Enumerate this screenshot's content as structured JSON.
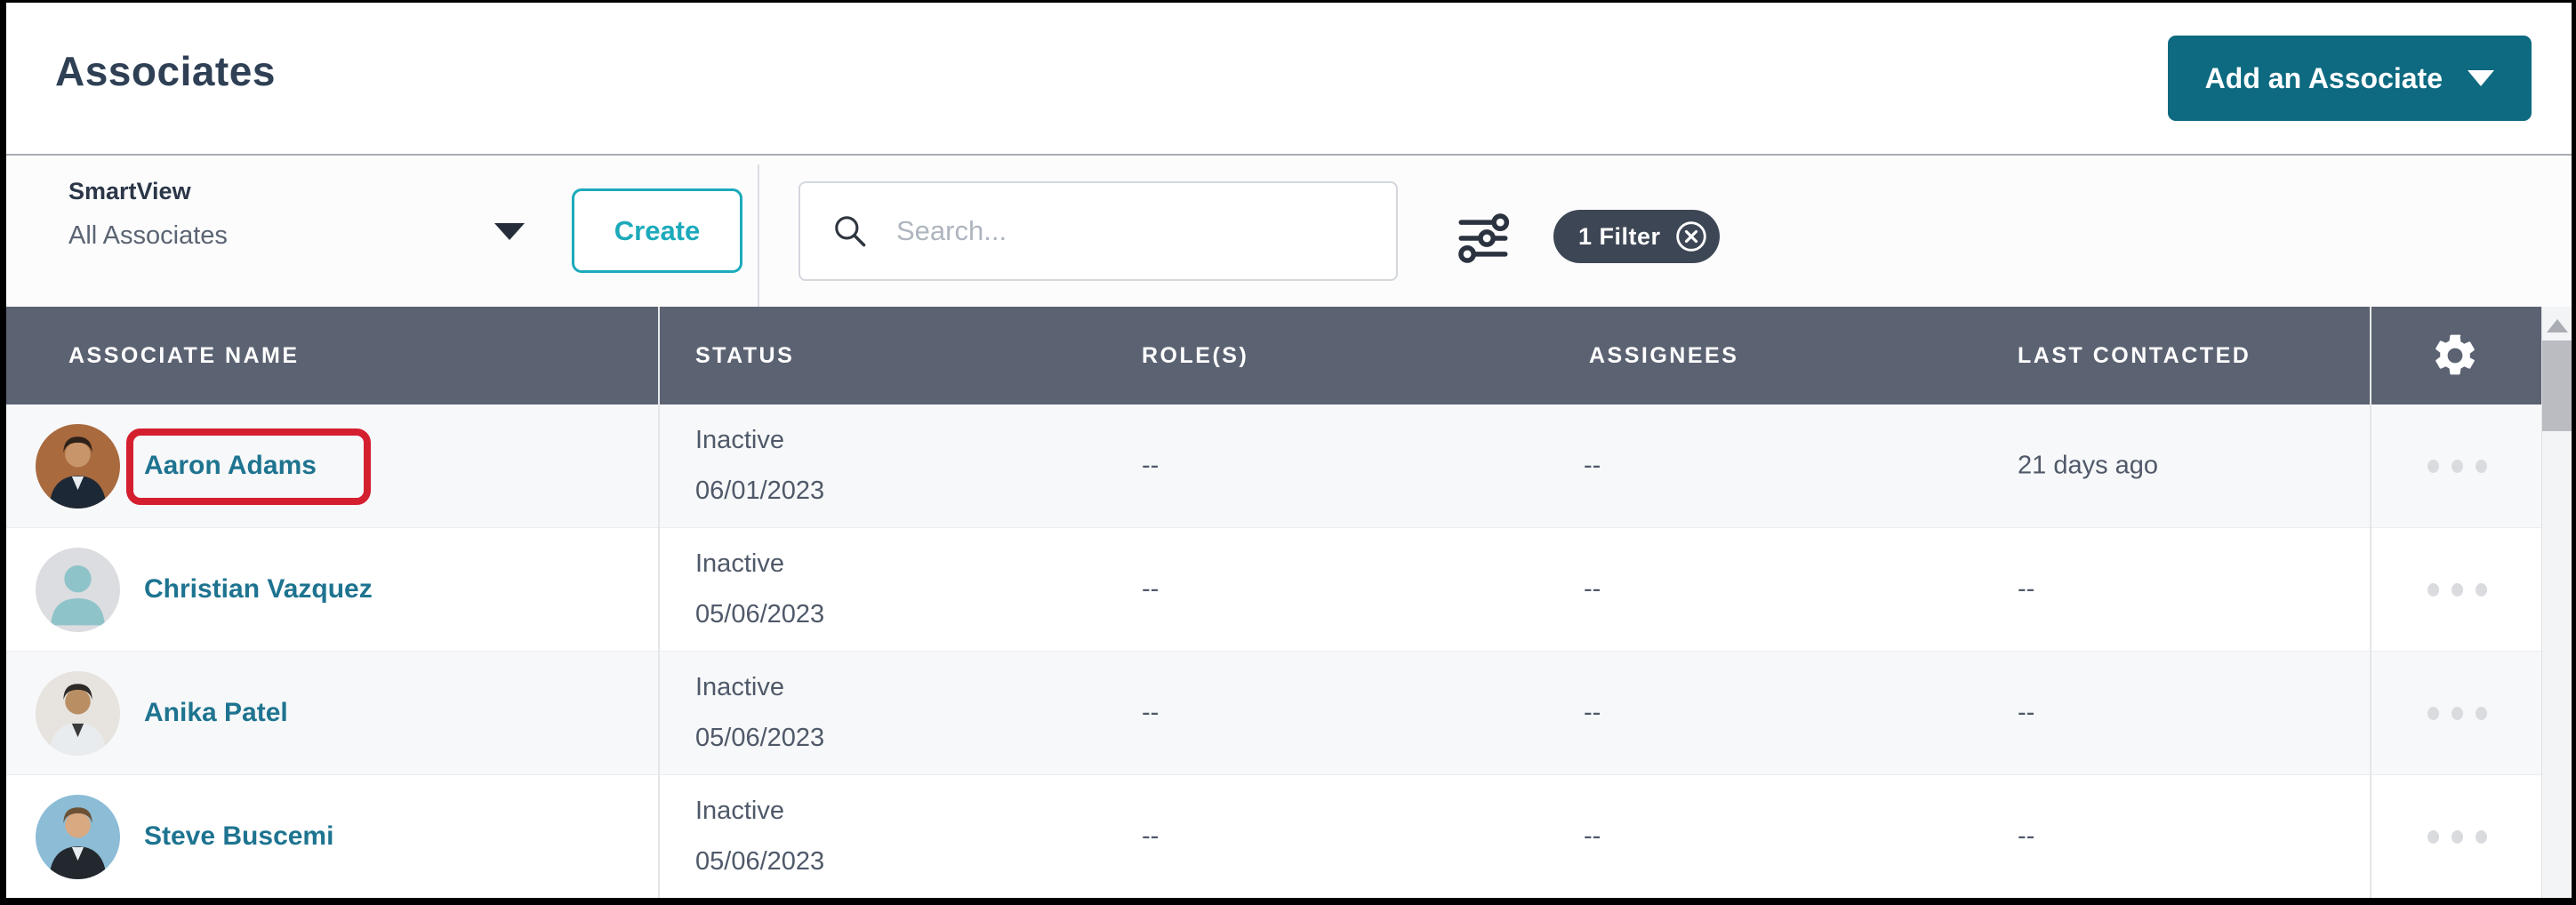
{
  "topbar": {
    "title": "Associates",
    "add_button_label": "Add an Associate"
  },
  "toolbar": {
    "smartview_label": "SmartView",
    "smartview_value": "All Associates",
    "create_button_label": "Create",
    "search_placeholder": "Search...",
    "filter_chip_label": "1 Filter"
  },
  "table": {
    "columns": [
      "ASSOCIATE NAME",
      "STATUS",
      "ROLE(S)",
      "ASSIGNEES",
      "LAST CONTACTED"
    ],
    "rows": [
      {
        "name": "Aaron Adams",
        "status": "Inactive",
        "status_date": "06/01/2023",
        "roles": "--",
        "assignees": "--",
        "last_contacted": "21 days ago",
        "highlighted": true,
        "avatar": {
          "type": "photo",
          "bg": "#a96a3e",
          "suit": "#1d2836",
          "shirt": "#e9edf2",
          "skin": "#c8956b",
          "hair": "#2e2118"
        }
      },
      {
        "name": "Christian Vazquez",
        "status": "Inactive",
        "status_date": "05/06/2023",
        "roles": "--",
        "assignees": "--",
        "last_contacted": "--",
        "highlighted": false,
        "avatar": {
          "type": "placeholder",
          "bg": "#dcdde0",
          "fg": "#8fc3ca"
        }
      },
      {
        "name": "Anika Patel",
        "status": "Inactive",
        "status_date": "05/06/2023",
        "roles": "--",
        "assignees": "--",
        "last_contacted": "--",
        "highlighted": false,
        "avatar": {
          "type": "photo",
          "bg": "#e7e3de",
          "suit": "#e9ecef",
          "shirt": "#3a3a3a",
          "skin": "#b98e62",
          "hair": "#2e2a28"
        }
      },
      {
        "name": "Steve Buscemi",
        "status": "Inactive",
        "status_date": "05/06/2023",
        "roles": "--",
        "assignees": "--",
        "last_contacted": "--",
        "highlighted": false,
        "avatar": {
          "type": "photo",
          "bg": "#8cbcd6",
          "suit": "#23272e",
          "shirt": "#e8edf2",
          "skin": "#d9a982",
          "hair": "#6d5134"
        }
      }
    ]
  },
  "colors": {
    "primary_teal": "#0d6a80",
    "accent_teal": "#1caabb",
    "link_teal": "#1e7490",
    "header_bg": "#5b6272",
    "chip_bg": "#3d4654",
    "title_text": "#2f4055",
    "body_text": "#4f5969",
    "highlight_red": "#d41f2f"
  }
}
